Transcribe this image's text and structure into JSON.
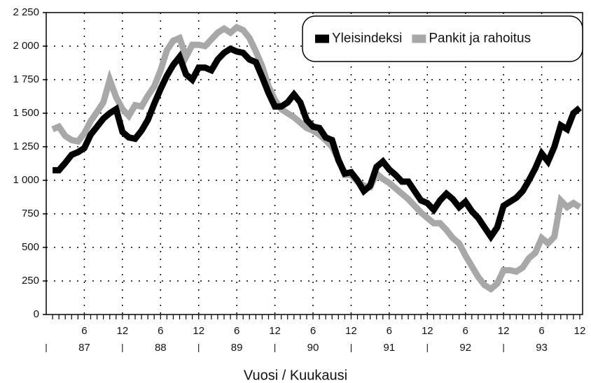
{
  "chart_data": {
    "type": "line",
    "x_label": "Vuosi / Kuukausi",
    "categories": [
      null,
      null,
      null,
      null,
      null,
      "6",
      null,
      null,
      null,
      null,
      null,
      "12",
      null,
      null,
      null,
      null,
      null,
      "6",
      null,
      null,
      null,
      null,
      null,
      "12",
      null,
      null,
      null,
      null,
      null,
      "6",
      null,
      null,
      null,
      null,
      null,
      "12",
      null,
      null,
      null,
      null,
      null,
      "6",
      null,
      null,
      null,
      null,
      null,
      "12",
      null,
      null,
      null,
      null,
      null,
      "6",
      null,
      null,
      null,
      null,
      null,
      "12",
      null,
      null,
      null,
      null,
      null,
      "6",
      null,
      null,
      null,
      null,
      null,
      "12",
      null,
      null,
      null,
      null,
      null,
      "6",
      null,
      null,
      null,
      null,
      null,
      "12"
    ],
    "years": [
      "87",
      "88",
      "89",
      "90",
      "91",
      "92",
      "93"
    ],
    "series": [
      {
        "name": "Yleisindeksi",
        "color": "#000000",
        "values": [
          1075,
          1075,
          1130,
          1190,
          1210,
          1240,
          1340,
          1400,
          1460,
          1500,
          1530,
          1360,
          1320,
          1310,
          1370,
          1450,
          1570,
          1680,
          1780,
          1860,
          1920,
          1790,
          1750,
          1840,
          1840,
          1820,
          1900,
          1950,
          1980,
          1960,
          1950,
          1900,
          1880,
          1770,
          1650,
          1550,
          1550,
          1580,
          1640,
          1580,
          1450,
          1400,
          1390,
          1320,
          1300,
          1150,
          1050,
          1060,
          1000,
          920,
          960,
          1100,
          1140,
          1080,
          1040,
          990,
          990,
          920,
          850,
          830,
          780,
          850,
          900,
          860,
          800,
          840,
          770,
          720,
          650,
          580,
          650,
          810,
          840,
          870,
          920,
          1000,
          1090,
          1200,
          1140,
          1250,
          1410,
          1380,
          1500,
          1540
        ]
      },
      {
        "name": "Pankit ja rahoitus",
        "color": "#a8a8a8",
        "values": [
          1380,
          1400,
          1330,
          1300,
          1290,
          1350,
          1440,
          1510,
          1580,
          1750,
          1620,
          1530,
          1480,
          1560,
          1550,
          1630,
          1700,
          1820,
          1970,
          2040,
          2060,
          1920,
          2010,
          2010,
          2000,
          2050,
          2100,
          2130,
          2100,
          2140,
          2120,
          2060,
          1960,
          1850,
          1700,
          1600,
          1530,
          1500,
          1470,
          1430,
          1390,
          1370,
          1340,
          1300,
          1250,
          1160,
          1040,
          1040,
          990,
          960,
          950,
          1050,
          1010,
          980,
          940,
          900,
          860,
          810,
          760,
          720,
          680,
          680,
          630,
          570,
          530,
          440,
          360,
          280,
          220,
          190,
          230,
          330,
          330,
          320,
          350,
          420,
          460,
          570,
          530,
          580,
          850,
          800,
          830,
          800
        ]
      }
    ],
    "ylim": [
      0,
      2250
    ],
    "yticks": [
      0,
      250,
      500,
      750,
      {
        "value": 1000,
        "label": "1 000"
      },
      {
        "value": 1250,
        "label": "1 250"
      },
      {
        "value": 1500,
        "label": "1 500"
      },
      {
        "value": 1750,
        "label": "1 750"
      },
      {
        "value": 2000,
        "label": "2 000"
      },
      {
        "value": 2250,
        "label": "2 250"
      }
    ],
    "grid": true,
    "legend": "top-right"
  }
}
